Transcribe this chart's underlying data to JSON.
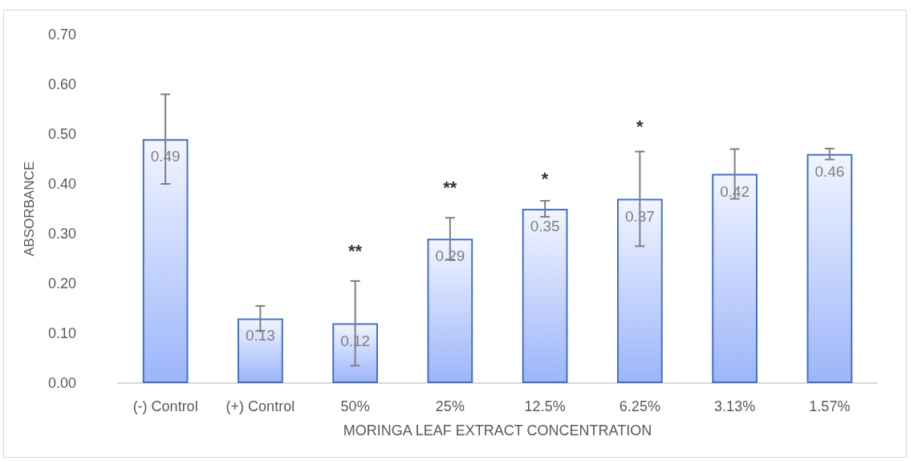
{
  "chart_data": {
    "type": "bar",
    "xlabel": "MORINGA LEAF EXTRACT CONCENTRATION",
    "ylabel": "ABSORBANCE",
    "categories": [
      "(-) Control",
      "(+) Control",
      "50%",
      "25%",
      "12.5%",
      "6.25%",
      "3.13%",
      "1.57%"
    ],
    "values": [
      0.49,
      0.13,
      0.12,
      0.29,
      0.35,
      0.37,
      0.42,
      0.46
    ],
    "errors": [
      0.09,
      0.025,
      0.085,
      0.042,
      0.016,
      0.095,
      0.05,
      0.011
    ],
    "color": "#4472c4",
    "ylim": [
      0,
      0.7
    ],
    "yticks": [
      {
        "value": 0,
        "label": "0.00"
      },
      {
        "value": 0.1,
        "label": "0.10"
      },
      {
        "value": 0.2,
        "label": "0.20"
      },
      {
        "value": 0.3,
        "label": "0.30"
      },
      {
        "value": 0.4,
        "label": "0.40"
      },
      {
        "value": 0.5,
        "label": "0.50"
      },
      {
        "value": 0.6,
        "label": "0.60"
      },
      {
        "value": 0.7,
        "label": "0.70"
      }
    ],
    "annotations": [
      "**",
      "**",
      "*",
      "*"
    ],
    "data_labels": true,
    "grid": false
  }
}
